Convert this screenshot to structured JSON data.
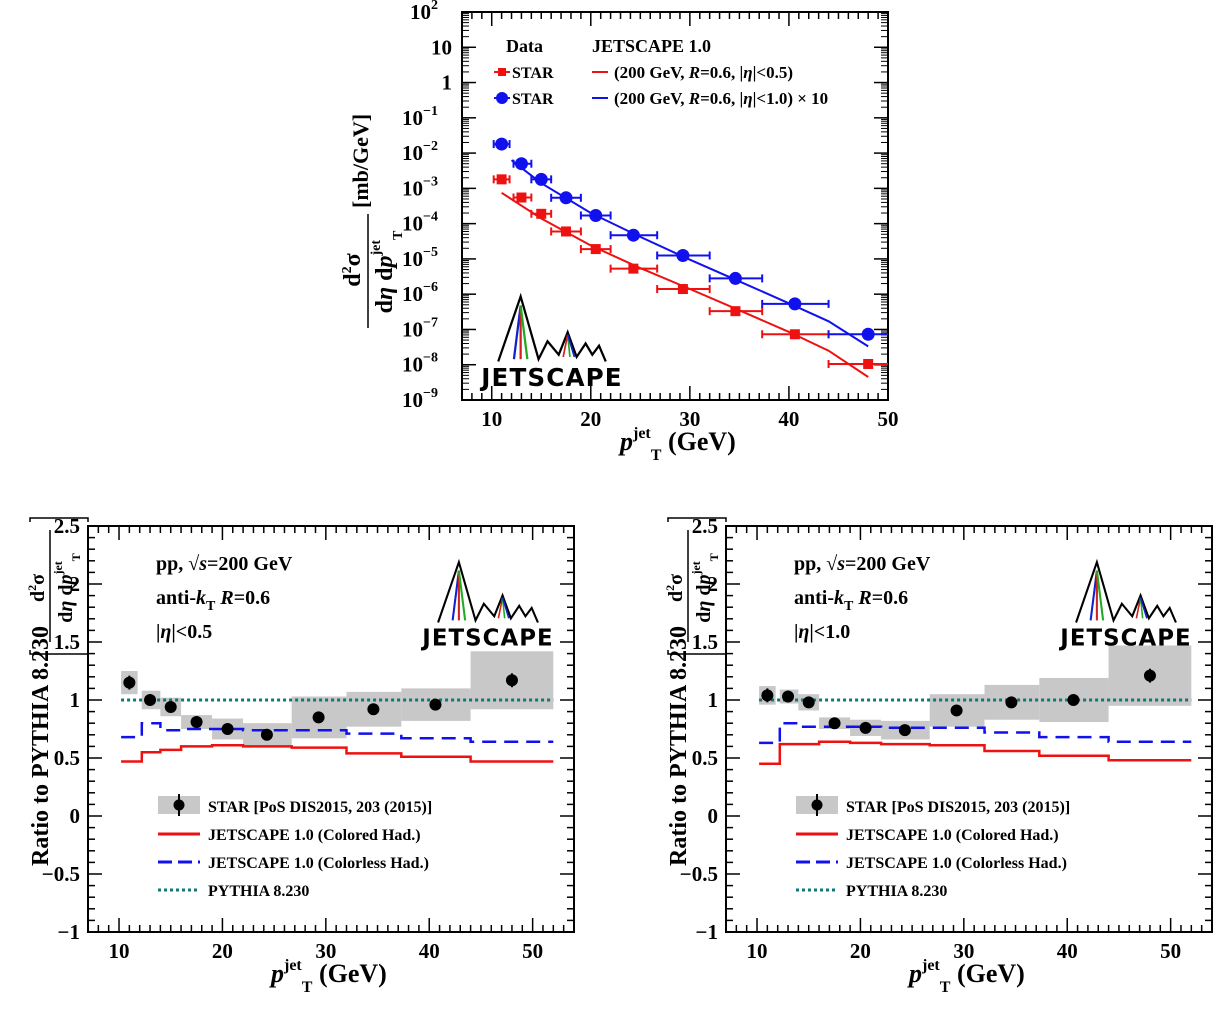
{
  "colors": {
    "star_red": "#ee1111",
    "star_blue": "#1111ee",
    "colored_had": "#ee1111",
    "colorless_had": "#1111ee",
    "pythia": "#117777",
    "band": "#c8c8c8"
  },
  "logo_text": "JETSCAPE",
  "chart_data": [
    {
      "id": "top-spectrum",
      "type": "scatter",
      "x_scale": "linear",
      "y_scale": "log",
      "xlim": [
        7,
        50
      ],
      "ylim": [
        1e-09,
        100
      ],
      "xlabel_main": "p",
      "xlabel_sup": "jet",
      "xlabel_sub": "T",
      "xlabel_unit": "(GeV)",
      "ylabel": "d²σ / dη dp_T^jet [mb/GeV]",
      "ylabel_unit": "[mb/GeV]",
      "x_ticks": [
        "10",
        "20",
        "30",
        "40",
        "50"
      ],
      "y_ticks": [
        {
          "base": "10",
          "exp": "−9"
        },
        {
          "base": "10",
          "exp": "−8"
        },
        {
          "base": "10",
          "exp": "−7"
        },
        {
          "base": "10",
          "exp": "−6"
        },
        {
          "base": "10",
          "exp": "−5"
        },
        {
          "base": "10",
          "exp": "−4"
        },
        {
          "base": "10",
          "exp": "−3"
        },
        {
          "base": "10",
          "exp": "−2"
        },
        {
          "base": "10",
          "exp": "−1"
        },
        {
          "base": "1",
          "exp": ""
        },
        {
          "base": "10",
          "exp": ""
        },
        {
          "base": "10",
          "exp": "2"
        }
      ],
      "legend": {
        "data_header": "Data",
        "model_header": "JETSCAPE 1.0",
        "entries": [
          {
            "marker": "STAR",
            "model": "(200 GeV,  R=0.6, |η|<0.5)",
            "scale": ""
          },
          {
            "marker": "STAR",
            "model": "(200 GeV,  R=0.6, |η|<1.0)",
            "scale": "× 10"
          }
        ]
      },
      "series": [
        {
          "name": "STAR",
          "color": "red",
          "marker": "square",
          "points": [
            {
              "x": 11,
              "xlo": 10.2,
              "xhi": 11.8,
              "y": 0.0018
            },
            {
              "x": 13,
              "xlo": 12.2,
              "xhi": 14,
              "y": 0.00055
            },
            {
              "x": 15,
              "xlo": 14,
              "xhi": 16,
              "y": 0.00019
            },
            {
              "x": 17.5,
              "xlo": 16,
              "xhi": 19,
              "y": 6e-05
            },
            {
              "x": 20.5,
              "xlo": 19,
              "xhi": 22,
              "y": 1.9e-05
            },
            {
              "x": 24.3,
              "xlo": 22,
              "xhi": 26.7,
              "y": 5.3e-06
            },
            {
              "x": 29.3,
              "xlo": 26.7,
              "xhi": 32,
              "y": 1.4e-06
            },
            {
              "x": 34.6,
              "xlo": 32,
              "xhi": 37.3,
              "y": 3.3e-07
            },
            {
              "x": 40.6,
              "xlo": 37.3,
              "xhi": 44,
              "y": 7.3e-08
            },
            {
              "x": 48,
              "xlo": 44,
              "xhi": 52,
              "y": 1.05e-08
            }
          ]
        },
        {
          "name": "STAR",
          "color": "blue",
          "marker": "circle",
          "points": [
            {
              "x": 11,
              "xlo": 10.2,
              "xhi": 11.8,
              "y": 0.018
            },
            {
              "x": 13,
              "xlo": 12.2,
              "xhi": 14,
              "y": 0.005
            },
            {
              "x": 15,
              "xlo": 14,
              "xhi": 16,
              "y": 0.0018
            },
            {
              "x": 17.5,
              "xlo": 16,
              "xhi": 19,
              "y": 0.00054
            },
            {
              "x": 20.5,
              "xlo": 19,
              "xhi": 22,
              "y": 0.00017
            },
            {
              "x": 24.3,
              "xlo": 22,
              "xhi": 26.7,
              "y": 4.7e-05
            },
            {
              "x": 29.3,
              "xlo": 26.7,
              "xhi": 32,
              "y": 1.25e-05
            },
            {
              "x": 34.6,
              "xlo": 32,
              "xhi": 37.3,
              "y": 2.8e-06
            },
            {
              "x": 40.6,
              "xlo": 37.3,
              "xhi": 44,
              "y": 5.3e-07
            },
            {
              "x": 48,
              "xlo": 44,
              "xhi": 52,
              "y": 7.3e-08
            }
          ]
        }
      ],
      "curves": [
        {
          "name": "JETSCAPE 1.0 |η|<0.5",
          "color": "red",
          "points": [
            [
              11,
              0.00075
            ],
            [
              15,
              0.00014
            ],
            [
              20,
              2.4e-05
            ],
            [
              25,
              5.5e-06
            ],
            [
              30,
              1.4e-06
            ],
            [
              35,
              3.5e-07
            ],
            [
              40,
              8.5e-08
            ],
            [
              44,
              2.5e-08
            ],
            [
              48,
              4.5e-09
            ]
          ]
        },
        {
          "name": "JETSCAPE 1.0 |η|<1.0 ×10",
          "color": "blue",
          "points": [
            [
              12,
              0.0063
            ],
            [
              15,
              0.0014
            ],
            [
              20,
              0.0002
            ],
            [
              25,
              4.2e-05
            ],
            [
              30,
              9.5e-06
            ],
            [
              35,
              2.3e-06
            ],
            [
              40,
              5.5e-07
            ],
            [
              44,
              1.7e-07
            ],
            [
              48,
              3.3e-08
            ]
          ]
        }
      ]
    },
    {
      "id": "ratio-eta05",
      "type": "line",
      "xlim": [
        7,
        54
      ],
      "ylim": [
        -1,
        2.5
      ],
      "xlabel_main": "p",
      "xlabel_sup": "jet",
      "xlabel_sub": "T",
      "xlabel_unit": "(GeV)",
      "ylabel": "Ratio to PYTHIA 8.230",
      "ylabel_bracket_sup": "jet",
      "ylabel_bracket_sub": "T",
      "x_ticks": [
        "10",
        "20",
        "30",
        "40",
        "50"
      ],
      "y_ticks": [
        "−1",
        "−0.5",
        "0",
        "0.5",
        "1",
        "1.5",
        "2",
        "2.5"
      ],
      "info": [
        "pp,  √s=200 GeV",
        "anti-k_T  R=0.6",
        "|η|<0.5"
      ],
      "star": [
        {
          "xlo": 10.2,
          "xhi": 11.8,
          "x": 11,
          "y": 1.15,
          "err": 0.06,
          "band": 0.1
        },
        {
          "xlo": 12.2,
          "xhi": 14,
          "x": 13,
          "y": 1.0,
          "err": 0.04,
          "band": 0.08
        },
        {
          "xlo": 14,
          "xhi": 16,
          "x": 15,
          "y": 0.94,
          "err": 0.03,
          "band": 0.08
        },
        {
          "xlo": 16,
          "xhi": 19,
          "x": 17.5,
          "y": 0.81,
          "err": 0.03,
          "band": 0.06
        },
        {
          "xlo": 19,
          "xhi": 22,
          "x": 20.5,
          "y": 0.75,
          "err": 0.03,
          "band": 0.09
        },
        {
          "xlo": 22,
          "xhi": 26.7,
          "x": 24.3,
          "y": 0.7,
          "err": 0.03,
          "band": 0.1
        },
        {
          "xlo": 26.7,
          "xhi": 32,
          "x": 29.3,
          "y": 0.85,
          "err": 0.03,
          "band": 0.18
        },
        {
          "xlo": 32,
          "xhi": 37.3,
          "x": 34.6,
          "y": 0.92,
          "err": 0.03,
          "band": 0.15
        },
        {
          "xlo": 37.3,
          "xhi": 44,
          "x": 40.6,
          "y": 0.96,
          "err": 0.03,
          "band": 0.14
        },
        {
          "xlo": 44,
          "xhi": 52,
          "x": 48,
          "y": 1.17,
          "err": 0.06,
          "band": 0.25
        }
      ],
      "colored": [
        [
          10.2,
          0.47
        ],
        [
          11.8,
          0.47
        ],
        [
          12.2,
          0.55
        ],
        [
          14,
          0.57
        ],
        [
          16,
          0.6
        ],
        [
          19,
          0.61
        ],
        [
          22,
          0.6
        ],
        [
          26.7,
          0.59
        ],
        [
          32,
          0.54
        ],
        [
          37.3,
          0.51
        ],
        [
          44,
          0.47
        ],
        [
          52,
          0.47
        ]
      ],
      "colorless": [
        [
          10.2,
          0.68
        ],
        [
          11.8,
          0.68
        ],
        [
          12.2,
          0.8
        ],
        [
          14,
          0.74
        ],
        [
          16,
          0.75
        ],
        [
          19,
          0.75
        ],
        [
          22,
          0.74
        ],
        [
          26.7,
          0.74
        ],
        [
          32,
          0.71
        ],
        [
          37.3,
          0.67
        ],
        [
          44,
          0.64
        ],
        [
          52,
          0.64
        ]
      ],
      "pythia": 1.0,
      "legend": [
        {
          "kind": "star",
          "label": "STAR [PoS DIS2015, 203 (2015)]"
        },
        {
          "kind": "colored",
          "label": "JETSCAPE 1.0 (Colored Had.)"
        },
        {
          "kind": "colorless",
          "label": "JETSCAPE 1.0 (Colorless Had.)"
        },
        {
          "kind": "pythia",
          "label": "PYTHIA 8.230"
        }
      ]
    },
    {
      "id": "ratio-eta10",
      "type": "line",
      "xlim": [
        7,
        54
      ],
      "ylim": [
        -1,
        2.5
      ],
      "xlabel_main": "p",
      "xlabel_sup": "jet",
      "xlabel_sub": "T",
      "xlabel_unit": "(GeV)",
      "ylabel": "Ratio to PYTHIA 8.230",
      "ylabel_bracket_sup": "jet",
      "ylabel_bracket_sub": "T",
      "x_ticks": [
        "10",
        "20",
        "30",
        "40",
        "50"
      ],
      "y_ticks": [
        "−1",
        "−0.5",
        "0",
        "0.5",
        "1",
        "1.5",
        "2",
        "2.5"
      ],
      "info": [
        "pp,  √s=200 GeV",
        "anti-k_T  R=0.6",
        "|η|<1.0"
      ],
      "star": [
        {
          "xlo": 10.2,
          "xhi": 11.8,
          "x": 11,
          "y": 1.04,
          "err": 0.06,
          "band": 0.08
        },
        {
          "xlo": 12.2,
          "xhi": 14,
          "x": 13,
          "y": 1.03,
          "err": 0.04,
          "band": 0.06
        },
        {
          "xlo": 14,
          "xhi": 16,
          "x": 15,
          "y": 0.98,
          "err": 0.03,
          "band": 0.07
        },
        {
          "xlo": 16,
          "xhi": 19,
          "x": 17.5,
          "y": 0.8,
          "err": 0.03,
          "band": 0.05
        },
        {
          "xlo": 19,
          "xhi": 22,
          "x": 20.5,
          "y": 0.76,
          "err": 0.03,
          "band": 0.07
        },
        {
          "xlo": 22,
          "xhi": 26.7,
          "x": 24.3,
          "y": 0.74,
          "err": 0.03,
          "band": 0.08
        },
        {
          "xlo": 26.7,
          "xhi": 32,
          "x": 29.3,
          "y": 0.91,
          "err": 0.03,
          "band": 0.14
        },
        {
          "xlo": 32,
          "xhi": 37.3,
          "x": 34.6,
          "y": 0.98,
          "err": 0.03,
          "band": 0.15
        },
        {
          "xlo": 37.3,
          "xhi": 44,
          "x": 40.6,
          "y": 1.0,
          "err": 0.03,
          "band": 0.19
        },
        {
          "xlo": 44,
          "xhi": 52,
          "x": 48,
          "y": 1.21,
          "err": 0.06,
          "band": 0.26
        }
      ],
      "colored": [
        [
          10.2,
          0.45
        ],
        [
          11.8,
          0.45
        ],
        [
          12.2,
          0.62
        ],
        [
          14,
          0.62
        ],
        [
          16,
          0.64
        ],
        [
          19,
          0.63
        ],
        [
          22,
          0.62
        ],
        [
          26.7,
          0.61
        ],
        [
          32,
          0.56
        ],
        [
          37.3,
          0.52
        ],
        [
          44,
          0.48
        ],
        [
          52,
          0.48
        ]
      ],
      "colorless": [
        [
          10.2,
          0.63
        ],
        [
          11.8,
          0.63
        ],
        [
          12.2,
          0.8
        ],
        [
          14,
          0.77
        ],
        [
          16,
          0.77
        ],
        [
          19,
          0.77
        ],
        [
          22,
          0.76
        ],
        [
          26.7,
          0.76
        ],
        [
          32,
          0.72
        ],
        [
          37.3,
          0.68
        ],
        [
          44,
          0.64
        ],
        [
          52,
          0.64
        ]
      ],
      "pythia": 1.0,
      "legend": [
        {
          "kind": "star",
          "label": "STAR [PoS DIS2015, 203 (2015)]"
        },
        {
          "kind": "colored",
          "label": "JETSCAPE 1.0 (Colored Had.)"
        },
        {
          "kind": "colorless",
          "label": "JETSCAPE 1.0 (Colorless Had.)"
        },
        {
          "kind": "pythia",
          "label": "PYTHIA 8.230"
        }
      ]
    }
  ]
}
